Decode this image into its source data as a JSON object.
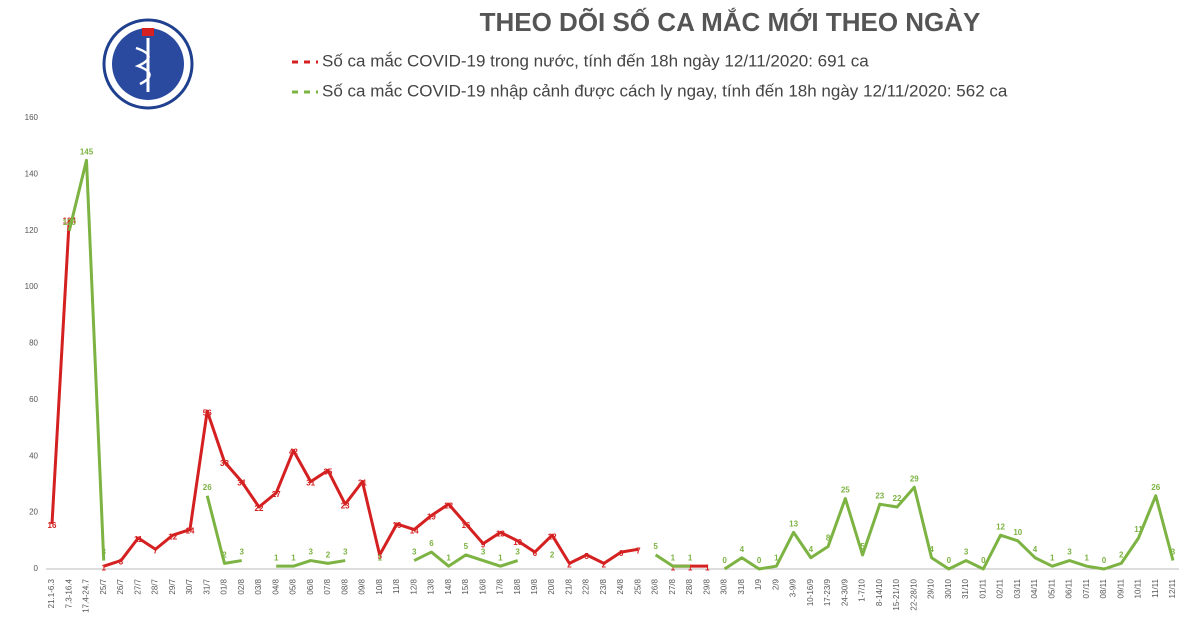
{
  "chart_data": {
    "type": "line",
    "title": "THEO DÕI SỐ CA MẮC MỚI THEO NGÀY",
    "categories": [
      "21.1-6.3",
      "7.3-16.4",
      "17.4-24.7",
      "25/7",
      "26/7",
      "27/7",
      "28/7",
      "29/7",
      "30/7",
      "31/7",
      "01/8",
      "02/8",
      "03/8",
      "04/8",
      "05/8",
      "06/8",
      "07/8",
      "08/8",
      "09/8",
      "10/8",
      "11/8",
      "12/8",
      "13/8",
      "14/8",
      "15/8",
      "16/8",
      "17/8",
      "18/8",
      "19/8",
      "20/8",
      "21/8",
      "22/8",
      "23/8",
      "24/8",
      "25/8",
      "26/8",
      "27/8",
      "28/8",
      "29/8",
      "30/8",
      "31/8",
      "1/9",
      "2/9",
      "3-9/9",
      "10-16/9",
      "17-23/9",
      "24-30/9",
      "1-7/10",
      "8-14/10",
      "15-21/10",
      "22-28/10",
      "29/10",
      "30/10",
      "31/10",
      "01/11",
      "02/11",
      "03/11",
      "04/11",
      "05/11",
      "06/11",
      "07/11",
      "08/11",
      "09/11",
      "10/11",
      "11/11",
      "12/11"
    ],
    "series": [
      {
        "name": "Số ca mắc COVID-19 trong nước, tính đến 18h ngày 12/11/2020: 691 ca",
        "color": "#d42020",
        "values": [
          16,
          124,
          null,
          1,
          3,
          11,
          7,
          12,
          14,
          56,
          38,
          31,
          22,
          27,
          42,
          31,
          35,
          23,
          31,
          5,
          16,
          14,
          19,
          23,
          16,
          9,
          13,
          10,
          6,
          12,
          2,
          5,
          2,
          6,
          7,
          null,
          1,
          1,
          1,
          null,
          null,
          null,
          null,
          null,
          null,
          null,
          null,
          null,
          null,
          null,
          null,
          null,
          null,
          null,
          null,
          null,
          null,
          null,
          null,
          null,
          null,
          null,
          null,
          null,
          null,
          null
        ]
      },
      {
        "name": "Số ca mắc COVID-19 nhập cảnh được cách ly ngay, tính đến 18h ngày 12/11/2020: 562 ca",
        "color": "#7cb342",
        "values": [
          null,
          120,
          145,
          3,
          null,
          null,
          null,
          null,
          null,
          26,
          2,
          3,
          null,
          1,
          1,
          3,
          2,
          3,
          null,
          1,
          null,
          3,
          6,
          1,
          5,
          3,
          1,
          3,
          null,
          2,
          null,
          null,
          null,
          null,
          null,
          5,
          1,
          1,
          null,
          0,
          4,
          0,
          1,
          13,
          4,
          8,
          25,
          5,
          23,
          22,
          29,
          4,
          0,
          3,
          0,
          12,
          10,
          4,
          1,
          3,
          1,
          0,
          2,
          11,
          26,
          3
        ]
      }
    ],
    "ylim": [
      0,
      160
    ],
    "yticks": [
      0,
      20,
      40,
      60,
      80,
      100,
      120,
      140,
      160
    ],
    "grid": false
  }
}
